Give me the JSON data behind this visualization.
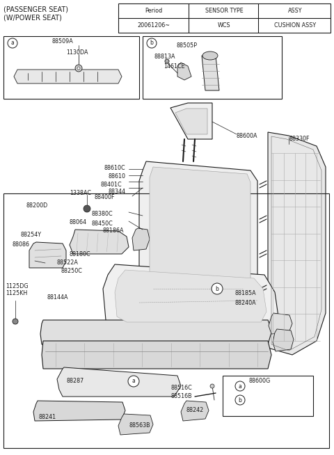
{
  "bg_color": "#ffffff",
  "text_color": "#1a1a1a",
  "line_color": "#1a1a1a",
  "title_line1": "(PASSENGER SEAT)",
  "title_line2": "(W/POWER SEAT)",
  "table_headers": [
    "Period",
    "SENSOR TYPE",
    "ASSY"
  ],
  "table_row": [
    "20061206~",
    "WCS",
    "CUSHION ASSY"
  ],
  "fs_small": 5.8,
  "fs_label": 6.2,
  "fs_title": 7.0
}
